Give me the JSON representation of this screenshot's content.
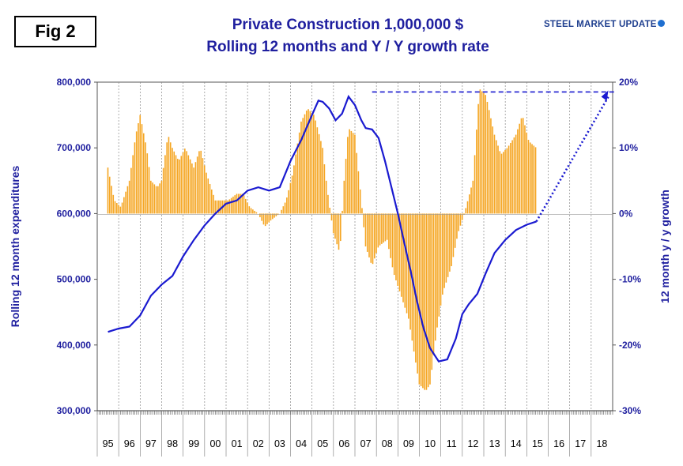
{
  "badge": "Fig 2",
  "title_line1": "Private Construction 1,000,000 $",
  "title_line2": "Rolling 12 months and Y / Y growth rate",
  "brand": "STEEL MARKET UPDATE",
  "colors": {
    "line": "#1a1ad0",
    "bars": "#f5a623",
    "text": "#1f1f9f"
  },
  "chart_data": {
    "type": "bar+line",
    "x_categories": [
      "95",
      "96",
      "97",
      "98",
      "99",
      "00",
      "01",
      "02",
      "03",
      "04",
      "05",
      "06",
      "07",
      "08",
      "09",
      "10",
      "11",
      "12",
      "13",
      "14",
      "15",
      "16",
      "17",
      "18"
    ],
    "left_axis": {
      "label": "Rolling 12 month expenditures",
      "ticks": [
        "800,000",
        "700,000",
        "600,000",
        "500,000",
        "400,000",
        "300,000"
      ],
      "range": [
        300000,
        800000
      ]
    },
    "right_axis": {
      "label": "12 month y / y growth",
      "ticks": [
        "20%",
        "10%",
        "0%",
        "-10%",
        "-20%",
        "-30%"
      ],
      "range": [
        -30,
        20
      ]
    },
    "line_series_left_axis": {
      "x": [
        1995.0,
        1995.5,
        1996.0,
        1996.5,
        1997.0,
        1997.5,
        1998.0,
        1998.5,
        1999.0,
        1999.5,
        2000.0,
        2000.5,
        2001.0,
        2001.5,
        2002.0,
        2002.5,
        2003.0,
        2003.5,
        2004.0,
        2004.5,
        2004.8,
        2005.0,
        2005.3,
        2005.6,
        2005.9,
        2006.2,
        2006.5,
        2006.8,
        2007.0,
        2007.3,
        2007.6,
        2007.9,
        2008.2,
        2008.5,
        2008.8,
        2009.1,
        2009.4,
        2009.7,
        2010.0,
        2010.4,
        2010.8,
        2011.2,
        2011.5,
        2011.8,
        2012.2,
        2012.6,
        2013.0,
        2013.5,
        2014.0,
        2014.5,
        2014.95
      ],
      "y": [
        420000,
        425000,
        428000,
        445000,
        475000,
        492000,
        505000,
        535000,
        560000,
        582000,
        600000,
        615000,
        620000,
        635000,
        640000,
        635000,
        640000,
        680000,
        712000,
        750000,
        772000,
        770000,
        760000,
        742000,
        752000,
        778000,
        765000,
        742000,
        730000,
        728000,
        715000,
        680000,
        640000,
        600000,
        555000,
        512000,
        465000,
        425000,
        395000,
        375000,
        378000,
        410000,
        447000,
        462000,
        478000,
        510000,
        540000,
        560000,
        575000,
        583000,
        588000
      ]
    },
    "bar_series_right_axis": {
      "x": [
        1995.0,
        1995.3,
        1995.6,
        1996.0,
        1996.3,
        1996.5,
        1996.8,
        1997.0,
        1997.3,
        1997.5,
        1997.8,
        1998.0,
        1998.3,
        1998.6,
        1999.0,
        1999.3,
        1999.6,
        2000.0,
        2000.3,
        2000.6,
        2001.0,
        2001.3,
        2001.6,
        2002.0,
        2002.3,
        2002.6,
        2003.0,
        2003.3,
        2003.6,
        2004.0,
        2004.3,
        2004.6,
        2005.0,
        2005.2,
        2005.5,
        2005.8,
        2006.0,
        2006.2,
        2006.5,
        2006.8,
        2007.0,
        2007.3,
        2007.6,
        2008.0,
        2008.3,
        2008.6,
        2009.0,
        2009.3,
        2009.5,
        2009.8,
        2010.0,
        2010.3,
        2010.6,
        2011.0,
        2011.3,
        2011.6,
        2012.0,
        2012.3,
        2012.6,
        2013.0,
        2013.3,
        2013.6,
        2014.0,
        2014.3,
        2014.6,
        2014.95
      ],
      "y": [
        7,
        2,
        1,
        5,
        12,
        15,
        10,
        5,
        4,
        5,
        12,
        10,
        8,
        10,
        7,
        10,
        6,
        2,
        2,
        2,
        3,
        3,
        1,
        0,
        -2,
        -1,
        0,
        2,
        6,
        14,
        16,
        15,
        10,
        4,
        -3,
        -6,
        5,
        13,
        12,
        2,
        -5,
        -8,
        -5,
        -4,
        -9,
        -12,
        -16,
        -22,
        -26,
        -27,
        -26,
        -18,
        -12,
        -8,
        -3,
        0,
        5,
        19,
        18,
        12,
        9,
        10,
        12,
        15,
        11,
        10
      ]
    }
  }
}
